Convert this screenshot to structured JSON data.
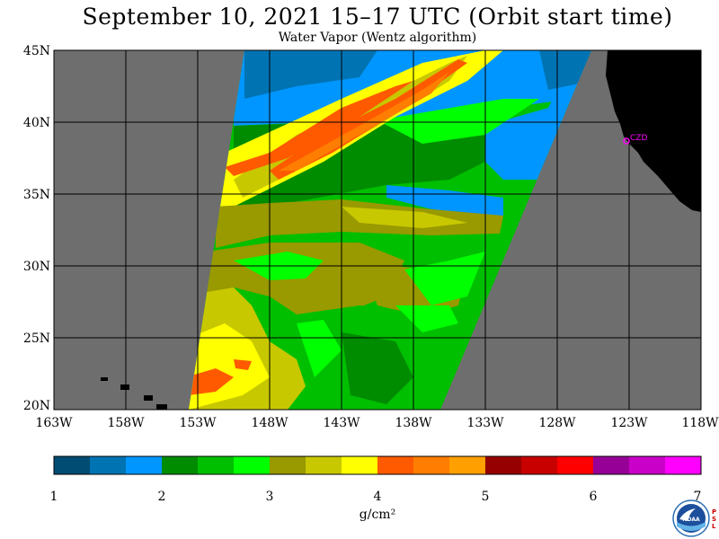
{
  "title": "September 10, 2021  15–17 UTC  (Orbit start time)",
  "subtitle": "Water Vapor (Wentz algorithm)",
  "map": {
    "lat_labels": [
      "45N",
      "40N",
      "35N",
      "30N",
      "25N",
      "20N"
    ],
    "lon_labels": [
      "163W",
      "158W",
      "153W",
      "148W",
      "143W",
      "138W",
      "133W",
      "128W",
      "123W",
      "118W"
    ],
    "station_label": "CZD",
    "colors": {
      "no_data": "#6e6e6e",
      "land": "#000000",
      "grid": "#000000",
      "station": "#ff00ff"
    }
  },
  "colorbar": {
    "tick_labels": [
      "1",
      "2",
      "3",
      "4",
      "5",
      "6",
      "7"
    ],
    "units": "g/cm²",
    "colors": [
      "#004c73",
      "#0073b3",
      "#0096ff",
      "#008c00",
      "#00bf00",
      "#00ff00",
      "#999900",
      "#c8c800",
      "#ffff00",
      "#ff5a00",
      "#ff7d00",
      "#ffa000",
      "#960000",
      "#c80000",
      "#ff0000",
      "#960096",
      "#c800c8",
      "#ff00ff"
    ]
  },
  "logo": {
    "text": "NOAA",
    "psl_text": "PSL"
  }
}
